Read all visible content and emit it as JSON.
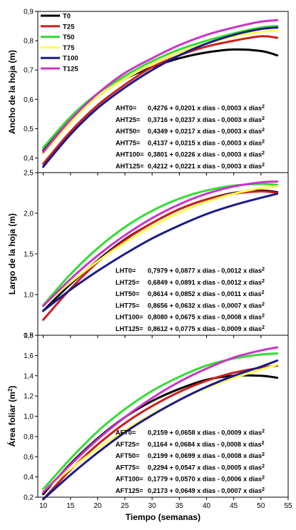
{
  "series_colors": {
    "T0": "#000000",
    "T25": "#cc1f1f",
    "T50": "#33dd33",
    "T75": "#ffff55",
    "T100": "#1a1a8c",
    "T125": "#cc33cc"
  },
  "legend": [
    "T0",
    "T25",
    "T50",
    "T75",
    "T100",
    "T125"
  ],
  "x_axis": {
    "label": "Tiempo (semanas)",
    "ticks": [
      10,
      15,
      20,
      25,
      30,
      35,
      40,
      45,
      50,
      55
    ]
  },
  "chart_data": [
    {
      "type": "line",
      "ylabel": "Ancho de la hoja (m)",
      "xlim": [
        9,
        55
      ],
      "ylim": [
        0.35,
        0.9
      ],
      "yticks": [
        "0,4",
        "0,5",
        "0,6",
        "0,7",
        "0,8",
        "0,9"
      ],
      "ytick_values": [
        0.4,
        0.5,
        0.6,
        0.7,
        0.8,
        0.9
      ],
      "series": [
        {
          "name": "T0",
          "x": [
            10,
            15,
            20,
            25,
            30,
            35,
            40,
            45,
            50,
            53
          ],
          "y": [
            0.425,
            0.53,
            0.61,
            0.67,
            0.71,
            0.74,
            0.76,
            0.77,
            0.765,
            0.75
          ]
        },
        {
          "name": "T25",
          "x": [
            10,
            15,
            20,
            25,
            30,
            35,
            40,
            45,
            50,
            53
          ],
          "y": [
            0.38,
            0.49,
            0.58,
            0.65,
            0.71,
            0.75,
            0.78,
            0.8,
            0.815,
            0.81
          ]
        },
        {
          "name": "T50",
          "x": [
            10,
            15,
            20,
            25,
            30,
            35,
            40,
            45,
            50,
            53
          ],
          "y": [
            0.435,
            0.54,
            0.62,
            0.68,
            0.73,
            0.77,
            0.8,
            0.825,
            0.845,
            0.85
          ]
        },
        {
          "name": "T75",
          "x": [
            10,
            15,
            20,
            25,
            30,
            35,
            40,
            45,
            50,
            53
          ],
          "y": [
            0.415,
            0.52,
            0.61,
            0.67,
            0.72,
            0.76,
            0.79,
            0.815,
            0.83,
            0.835
          ]
        },
        {
          "name": "T100",
          "x": [
            10,
            15,
            20,
            25,
            30,
            35,
            40,
            45,
            50,
            53
          ],
          "y": [
            0.37,
            0.48,
            0.57,
            0.64,
            0.7,
            0.75,
            0.79,
            0.82,
            0.84,
            0.845
          ]
        },
        {
          "name": "T125",
          "x": [
            10,
            15,
            20,
            25,
            30,
            35,
            40,
            45,
            50,
            53
          ],
          "y": [
            0.42,
            0.53,
            0.62,
            0.69,
            0.74,
            0.785,
            0.82,
            0.845,
            0.865,
            0.87
          ]
        }
      ],
      "equations": [
        {
          "label": "AHT0=",
          "text": "0,4276 + 0,0201 x días - 0,0003 x días",
          "sup": "2"
        },
        {
          "label": "AHT25=",
          "text": "0,3716 + 0,0237 x días - 0,0003 x días",
          "sup": "2"
        },
        {
          "label": "AHT50=",
          "text": "0,4349 + 0,0217 x días - 0,0003 x días",
          "sup": "2"
        },
        {
          "label": "AHT75=",
          "text": "0,4137 + 0,0215 x días - 0,0003 x días",
          "sup": "2"
        },
        {
          "label": "AHT100=",
          "text": "0,3801 + 0,0226 x días - 0,0003 x días",
          "sup": "2"
        },
        {
          "label": "AHT125=",
          "text": "0,4212 + 0,0221 x días - 0,0003 x días",
          "sup": "2"
        }
      ]
    },
    {
      "type": "line",
      "ylabel": "Largo de la hoja (m)",
      "xlim": [
        9,
        55
      ],
      "ylim": [
        0.5,
        2.5
      ],
      "yticks": [
        "0,5",
        "1,0",
        "1,5",
        "2,0",
        "2,5"
      ],
      "ytick_values": [
        0.5,
        1.0,
        1.5,
        2.0,
        2.5
      ],
      "series": [
        {
          "name": "T0",
          "x": [
            10,
            15,
            20,
            25,
            30,
            35,
            40,
            45,
            50,
            53
          ],
          "y": [
            0.8,
            1.13,
            1.42,
            1.68,
            1.88,
            2.05,
            2.17,
            2.25,
            2.28,
            2.26
          ]
        },
        {
          "name": "T25",
          "x": [
            10,
            15,
            20,
            25,
            30,
            35,
            40,
            45,
            50,
            53
          ],
          "y": [
            0.69,
            1.07,
            1.4,
            1.67,
            1.88,
            2.05,
            2.17,
            2.24,
            2.27,
            2.25
          ]
        },
        {
          "name": "T50",
          "x": [
            10,
            15,
            20,
            25,
            30,
            35,
            40,
            45,
            50,
            53
          ],
          "y": [
            0.87,
            1.25,
            1.57,
            1.83,
            2.03,
            2.18,
            2.28,
            2.34,
            2.36,
            2.35
          ]
        },
        {
          "name": "T75",
          "x": [
            10,
            15,
            20,
            25,
            30,
            35,
            40,
            45,
            50,
            53
          ],
          "y": [
            0.86,
            1.15,
            1.41,
            1.64,
            1.84,
            2.01,
            2.14,
            2.24,
            2.31,
            2.33
          ]
        },
        {
          "name": "T100",
          "x": [
            10,
            15,
            20,
            25,
            30,
            35,
            40,
            45,
            50,
            53
          ],
          "y": [
            0.8,
            1.06,
            1.29,
            1.5,
            1.69,
            1.85,
            1.99,
            2.1,
            2.19,
            2.24
          ]
        },
        {
          "name": "T125",
          "x": [
            10,
            15,
            20,
            25,
            30,
            35,
            40,
            45,
            50,
            53
          ],
          "y": [
            0.86,
            1.19,
            1.48,
            1.73,
            1.94,
            2.11,
            2.24,
            2.33,
            2.38,
            2.39
          ]
        }
      ],
      "equations": [
        {
          "label": "LHT0=",
          "text": "0,7979 + 0,0877 x días - 0,0012 x días",
          "sup": "2"
        },
        {
          "label": "LHT25=",
          "text": "0,6849 + 0,0891 x días - 0,0012 x días",
          "sup": "2"
        },
        {
          "label": "LHT50=",
          "text": "0,8614 + 0,0852 x días - 0,0011 x días",
          "sup": "2"
        },
        {
          "label": "LHT75=",
          "text": "0,8656 + 0,0632 x días - 0,0007 x días",
          "sup": "2"
        },
        {
          "label": "LHT100=",
          "text": "0,8080 + 0,0675 x días - 0,0008 x días",
          "sup": "2"
        },
        {
          "label": "LHT125=",
          "text": "0,8612 + 0,0775 x días - 0,0009 x días",
          "sup": "2"
        }
      ]
    },
    {
      "type": "line",
      "ylabel": "Área foliar (m",
      "ylabel_sup": "2",
      "ylabel_end": ")",
      "xlim": [
        9,
        55
      ],
      "ylim": [
        0.2,
        1.8
      ],
      "yticks": [
        "0,2",
        "0,4",
        "0,6",
        "0,8",
        "1,0",
        "1,2",
        "1,4",
        "1,6",
        "1,8"
      ],
      "ytick_values": [
        0.2,
        0.4,
        0.6,
        0.8,
        1.0,
        1.2,
        1.4,
        1.6,
        1.8
      ],
      "series": [
        {
          "name": "T0",
          "x": [
            10,
            15,
            20,
            25,
            30,
            35,
            40,
            45,
            50,
            53
          ],
          "y": [
            0.23,
            0.53,
            0.78,
            0.99,
            1.15,
            1.27,
            1.36,
            1.4,
            1.4,
            1.38
          ]
        },
        {
          "name": "T25",
          "x": [
            10,
            15,
            20,
            25,
            30,
            35,
            40,
            45,
            50,
            53
          ],
          "y": [
            0.18,
            0.47,
            0.72,
            0.93,
            1.1,
            1.24,
            1.35,
            1.43,
            1.48,
            1.5
          ]
        },
        {
          "name": "T50",
          "x": [
            10,
            15,
            20,
            25,
            30,
            35,
            40,
            45,
            50,
            53
          ],
          "y": [
            0.28,
            0.58,
            0.85,
            1.07,
            1.25,
            1.39,
            1.5,
            1.57,
            1.61,
            1.62
          ]
        },
        {
          "name": "T75",
          "x": [
            10,
            15,
            20,
            25,
            30,
            35,
            40,
            45,
            50,
            53
          ],
          "y": [
            0.26,
            0.48,
            0.68,
            0.86,
            1.02,
            1.16,
            1.28,
            1.38,
            1.46,
            1.51
          ]
        },
        {
          "name": "T100",
          "x": [
            10,
            15,
            20,
            25,
            30,
            35,
            40,
            45,
            50,
            53
          ],
          "y": [
            0.18,
            0.42,
            0.64,
            0.84,
            1.01,
            1.16,
            1.29,
            1.4,
            1.49,
            1.55
          ]
        },
        {
          "name": "T125",
          "x": [
            10,
            15,
            20,
            25,
            30,
            35,
            40,
            45,
            50,
            53
          ],
          "y": [
            0.25,
            0.52,
            0.77,
            0.99,
            1.18,
            1.34,
            1.47,
            1.58,
            1.65,
            1.68
          ]
        }
      ],
      "equations": [
        {
          "label": "AFT0=",
          "text": "0,2159 + 0,0658 x días - 0,0009 x días",
          "sup": "2"
        },
        {
          "label": "AFT25=",
          "text": "0,1164 + 0,0684 x días - 0,0008 x días",
          "sup": "2"
        },
        {
          "label": "AFT50=",
          "text": "0,2199 + 0,0699 x días - 0,0008 x días",
          "sup": "2"
        },
        {
          "label": "AFT75=",
          "text": "0,2294 + 0,0547 x días - 0,0005 x días",
          "sup": "2"
        },
        {
          "label": "AFT100=",
          "text": "0,1779 + 0,0570 x días - 0,0006 x días",
          "sup": "2"
        },
        {
          "label": "AFT125=",
          "text": "0,2173 + 0,0649 x días - 0,0007 x días",
          "sup": "2"
        }
      ]
    }
  ]
}
